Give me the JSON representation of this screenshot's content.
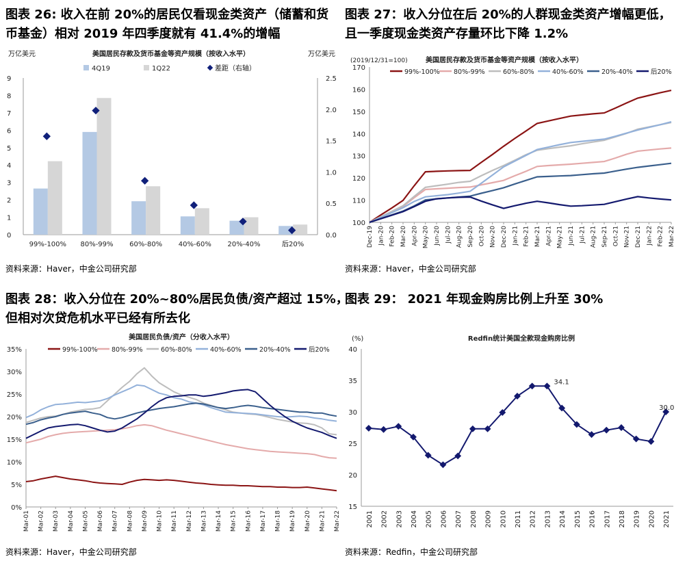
{
  "colors": {
    "bar_4q19": "#b4c9e4",
    "bar_1q22": "#d6d6d6",
    "gap_marker": "#10207a",
    "s99_100": "#8b1414",
    "s80_99": "#e4aaaa",
    "s60_80": "#bdbdbd",
    "s40_60": "#93b1da",
    "s20_40": "#3a5f8c",
    "s_bottom20": "#13196e",
    "axis": "#999999",
    "grid": "#e9e9e9"
  },
  "fig26": {
    "title_line1": "图表 26: 收入在前 20%的居民仅看现金类资产（储蓄和货",
    "title_line2": "币基金）相对 2019 年四季度就有 41.4%的增幅",
    "source": "资料来源：Haver，中金公司研究部",
    "chart_data": {
      "type": "bar",
      "title": "美国居民存款及货币基金等资产规模（按收入水平）",
      "ylabel_left": "万亿美元",
      "ylabel_right": "万亿美元",
      "ylim": [
        0,
        9
      ],
      "ylim_right": [
        0,
        2.5
      ],
      "yticks": [
        "0",
        "1",
        "2",
        "3",
        "4",
        "5",
        "6",
        "7",
        "8",
        "9"
      ],
      "yticks_right": [
        "0.0",
        "0.5",
        "1.0",
        "1.5",
        "2.0",
        "2.5"
      ],
      "categories": [
        "99%-100%",
        "80%-99%",
        "60%-80%",
        "40%-60%",
        "20%-40%",
        "后20%"
      ],
      "series": [
        {
          "name": "4Q19",
          "type": "bar",
          "values": [
            2.65,
            5.9,
            1.92,
            1.05,
            0.8,
            0.5
          ]
        },
        {
          "name": "1Q22",
          "type": "bar",
          "values": [
            4.22,
            7.85,
            2.78,
            1.52,
            1.0,
            0.58
          ]
        },
        {
          "name": "差距（右轴）",
          "type": "marker",
          "axis": "right",
          "values": [
            1.57,
            1.98,
            0.86,
            0.47,
            0.21,
            0.07
          ]
        }
      ]
    }
  },
  "fig27": {
    "title_line1": "图表 27：收入分位在后 20%的人群现金类资产增幅更低，",
    "title_line2": "且一季度现金类资产存量环比下降 1.2%",
    "source": "资料来源：Haver，中金公司研究部",
    "chart_data": {
      "type": "line",
      "title": "美国居民存款及货币基金等资产规模（按收入水平）",
      "note": "(2019/12/31=100)",
      "ylim": [
        100,
        170
      ],
      "yticks": [
        "100",
        "110",
        "120",
        "130",
        "140",
        "150",
        "160",
        "170"
      ],
      "x": [
        "Dec-19",
        "Jan-20",
        "Feb-20",
        "Mar-20",
        "Apr-20",
        "May-20",
        "Jun-20",
        "Jul-20",
        "Aug-20",
        "Sep-20",
        "Oct-20",
        "Nov-20",
        "Dec-20",
        "Jan-21",
        "Feb-21",
        "Mar-21",
        "Apr-21",
        "May-21",
        "Jun-21",
        "Jul-21",
        "Aug-21",
        "Sep-21",
        "Oct-21",
        "Nov-21",
        "Dec-21",
        "Jan-22",
        "Feb-22",
        "Mar-22"
      ],
      "series": [
        {
          "name": "99%-100%",
          "values": [
            100,
            103.3,
            106.5,
            109.9,
            116.5,
            122.8,
            123.0,
            123.2,
            123.3,
            123.4,
            127.0,
            130.6,
            134.3,
            137.8,
            141.2,
            144.6,
            145.7,
            146.8,
            147.9,
            148.4,
            148.9,
            149.3,
            151.5,
            153.8,
            156.0,
            157.2,
            158.4,
            159.5
          ]
        },
        {
          "name": "80%-99%",
          "values": [
            100,
            102.3,
            104.8,
            107.2,
            111.1,
            114.8,
            115.1,
            115.4,
            115.7,
            115.9,
            116.9,
            117.9,
            118.9,
            121.0,
            123.0,
            125.2,
            125.6,
            125.9,
            126.2,
            126.6,
            127.0,
            127.4,
            129.0,
            130.7,
            132.1,
            132.6,
            133.1,
            133.5
          ]
        },
        {
          "name": "60%-80%",
          "values": [
            100,
            102.5,
            105.0,
            107.5,
            111.7,
            115.8,
            116.5,
            117.2,
            118.0,
            118.5,
            121.0,
            123.4,
            125.6,
            128.0,
            130.5,
            132.5,
            133.2,
            133.9,
            134.5,
            135.4,
            136.2,
            137.0,
            138.5,
            140.1,
            142.0,
            143.0,
            144.0,
            145.0
          ]
        },
        {
          "name": "40%-60%",
          "values": [
            100,
            102.2,
            104.4,
            106.6,
            109.4,
            111.5,
            112.0,
            112.5,
            113.2,
            114.0,
            117.6,
            121.3,
            125.0,
            127.6,
            130.2,
            132.8,
            133.9,
            135.0,
            136.0,
            136.5,
            137.0,
            137.5,
            138.8,
            140.2,
            141.6,
            142.8,
            144.0,
            145.3
          ]
        },
        {
          "name": "20%-40%",
          "values": [
            100,
            101.7,
            103.4,
            105.1,
            107.4,
            110.1,
            110.6,
            111.0,
            111.4,
            111.8,
            113.1,
            114.3,
            115.6,
            117.3,
            118.9,
            120.5,
            120.7,
            120.9,
            121.1,
            121.5,
            121.9,
            122.2,
            123.1,
            124.0,
            124.8,
            125.4,
            126.0,
            126.6
          ]
        },
        {
          "name": "后20%",
          "values": [
            100,
            101.6,
            103.2,
            104.8,
            107.1,
            109.5,
            110.6,
            111.0,
            111.3,
            111.4,
            109.6,
            107.9,
            106.3,
            107.5,
            108.6,
            109.5,
            108.8,
            108.0,
            107.3,
            107.5,
            107.8,
            108.1,
            109.3,
            110.5,
            111.6,
            111.0,
            110.5,
            110.1
          ]
        }
      ]
    }
  },
  "fig28": {
    "title_line1": "图表 28：收入分位在 20%~80%居民负债/资产超过 15%，",
    "title_line2": "但相对次贷危机水平已经有所去化",
    "source": "资料来源：Haver，中金公司研究部",
    "chart_data": {
      "type": "line",
      "title": "美国居民负债/资产（分收入水平）",
      "ylim": [
        0,
        35
      ],
      "yticks": [
        "0%",
        "5%",
        "10%",
        "15%",
        "20%",
        "25%",
        "30%",
        "35%"
      ],
      "x_ticks": [
        "Mar-01",
        "Mar-02",
        "Mar-03",
        "Mar-04",
        "Mar-05",
        "Mar-06",
        "Mar-07",
        "Mar-08",
        "Mar-09",
        "Mar-10",
        "Mar-11",
        "Mar-12",
        "Mar-13",
        "Mar-14",
        "Mar-15",
        "Mar-16",
        "Mar-17",
        "Mar-18",
        "Mar-19",
        "Mar-20",
        "Mar-21",
        "Mar-22"
      ],
      "x_positions": [
        2001.0,
        2001.5,
        2002.0,
        2002.5,
        2003.0,
        2003.5,
        2004.0,
        2004.5,
        2005.0,
        2005.5,
        2006.0,
        2006.5,
        2007.0,
        2007.5,
        2008.0,
        2008.5,
        2009.0,
        2009.5,
        2010.0,
        2010.5,
        2011.0,
        2011.5,
        2012.0,
        2012.5,
        2013.0,
        2013.5,
        2014.0,
        2014.5,
        2015.0,
        2015.5,
        2016.0,
        2016.5,
        2017.0,
        2017.5,
        2018.0,
        2018.5,
        2019.0,
        2019.5,
        2020.0,
        2020.5,
        2021.0,
        2021.5,
        2022.0
      ],
      "series": [
        {
          "name": "99%-100%",
          "values": [
            5.6,
            5.8,
            6.2,
            6.5,
            6.8,
            6.5,
            6.2,
            6.0,
            5.8,
            5.5,
            5.3,
            5.2,
            5.1,
            5.0,
            5.5,
            5.9,
            6.1,
            6.0,
            5.9,
            6.0,
            5.9,
            5.7,
            5.5,
            5.3,
            5.2,
            5.0,
            4.9,
            4.8,
            4.8,
            4.7,
            4.7,
            4.6,
            4.5,
            4.5,
            4.4,
            4.4,
            4.3,
            4.3,
            4.4,
            4.2,
            4.0,
            3.8,
            3.6
          ]
        },
        {
          "name": "80%-99%",
          "values": [
            14.2,
            14.6,
            15.0,
            15.6,
            16.0,
            16.3,
            16.5,
            16.6,
            16.7,
            16.8,
            16.9,
            17.0,
            17.1,
            17.3,
            17.6,
            18.0,
            18.2,
            18.0,
            17.5,
            17.0,
            16.6,
            16.2,
            15.8,
            15.4,
            15.0,
            14.6,
            14.2,
            13.8,
            13.5,
            13.2,
            12.9,
            12.7,
            12.5,
            12.3,
            12.2,
            12.1,
            12.0,
            11.9,
            11.8,
            11.6,
            11.2,
            10.9,
            10.8
          ]
        },
        {
          "name": "60%-80%",
          "values": [
            18.7,
            19.2,
            19.7,
            20.0,
            20.1,
            20.5,
            21.0,
            21.3,
            21.6,
            21.7,
            22.0,
            23.5,
            25.0,
            26.5,
            27.8,
            29.5,
            30.8,
            29.0,
            27.5,
            26.5,
            25.5,
            24.8,
            24.3,
            23.8,
            23.0,
            22.5,
            22.0,
            21.5,
            21.0,
            20.8,
            20.6,
            20.5,
            20.2,
            19.8,
            19.4,
            19.1,
            18.8,
            18.6,
            18.5,
            18.2,
            17.5,
            16.2,
            16.0
          ]
        },
        {
          "name": "40%-60%",
          "values": [
            19.8,
            20.5,
            21.5,
            22.2,
            22.7,
            22.8,
            23.0,
            23.2,
            23.1,
            23.3,
            23.5,
            24.0,
            24.8,
            25.5,
            26.2,
            27.0,
            26.8,
            26.0,
            25.2,
            24.8,
            24.2,
            23.9,
            23.3,
            23.0,
            22.6,
            22.0,
            21.5,
            21.0,
            20.9,
            20.8,
            20.7,
            20.6,
            20.4,
            20.2,
            20.0,
            19.9,
            20.0,
            20.1,
            20.0,
            19.7,
            19.5,
            19.2,
            19.0
          ]
        },
        {
          "name": "20%-40%",
          "values": [
            18.3,
            18.7,
            19.3,
            19.7,
            20.0,
            20.5,
            20.8,
            21.0,
            21.2,
            20.8,
            20.5,
            19.8,
            19.5,
            19.8,
            20.3,
            20.8,
            21.2,
            21.5,
            21.8,
            22.0,
            22.2,
            22.5,
            22.8,
            23.0,
            22.8,
            22.4,
            22.0,
            21.8,
            22.0,
            22.3,
            22.5,
            22.3,
            22.0,
            21.8,
            21.6,
            21.4,
            21.2,
            21.0,
            21.0,
            20.8,
            20.8,
            20.4,
            20.1
          ]
        },
        {
          "name": "后20%",
          "values": [
            15.2,
            16.0,
            16.8,
            17.5,
            17.8,
            18.0,
            18.2,
            18.3,
            18.0,
            17.5,
            17.0,
            16.6,
            16.8,
            17.5,
            18.5,
            19.5,
            20.8,
            22.2,
            23.4,
            24.2,
            24.5,
            24.6,
            24.8,
            24.8,
            24.5,
            24.7,
            25.0,
            25.3,
            25.7,
            25.9,
            26.0,
            25.5,
            24.0,
            22.5,
            21.2,
            20.0,
            19.0,
            18.2,
            17.5,
            17.0,
            16.5,
            15.8,
            15.2
          ]
        }
      ]
    }
  },
  "fig29": {
    "title_line1": "图表 29：  2021 年现金购房比例上升至 30%",
    "source": "资料来源：Redfin，中金公司研究部",
    "chart_data": {
      "type": "line",
      "title": "Redfin统计美国全款现金购房比例",
      "ylabel": "(%)",
      "ylim": [
        15,
        40
      ],
      "yticks": [
        "15",
        "20",
        "25",
        "30",
        "35",
        "40"
      ],
      "categories": [
        "2001",
        "2002",
        "2003",
        "2004",
        "2005",
        "2006",
        "2007",
        "2008",
        "2009",
        "2010",
        "2011",
        "2012",
        "2013",
        "2014",
        "2015",
        "2016",
        "2017",
        "2018",
        "2019",
        "2020",
        "2021"
      ],
      "values": [
        27.4,
        27.2,
        27.7,
        26.0,
        23.1,
        21.6,
        23.0,
        27.3,
        27.3,
        29.9,
        32.5,
        34.1,
        34.1,
        30.6,
        28.0,
        26.4,
        27.1,
        27.5,
        25.7,
        25.3,
        30.0
      ],
      "annotations": [
        {
          "label": "34.1",
          "index": 12
        },
        {
          "label": "30.0",
          "index": 20
        }
      ]
    }
  }
}
